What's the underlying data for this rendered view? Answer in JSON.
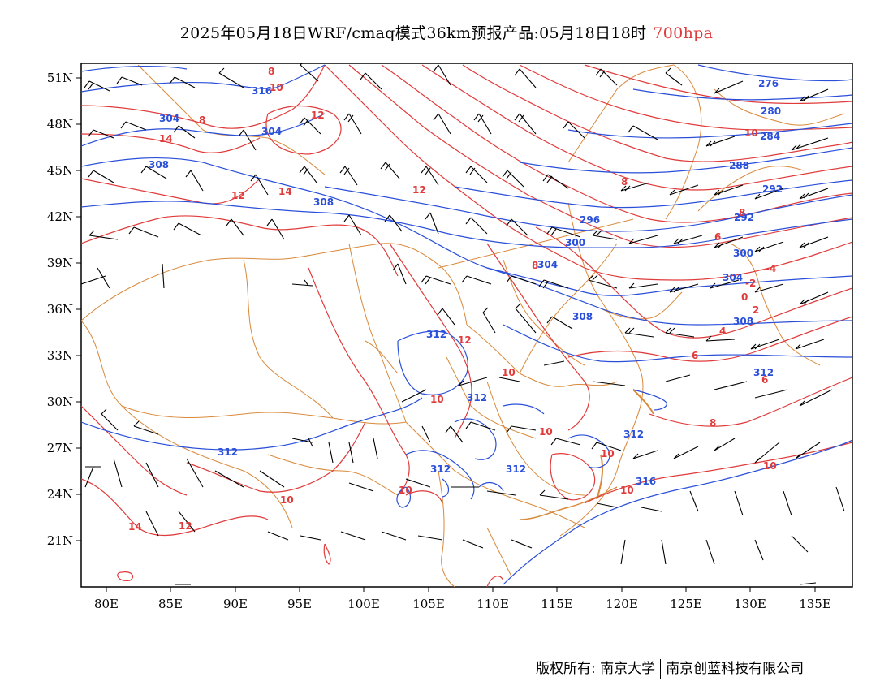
{
  "title": {
    "main": "2025年05月18日WRF/cmaq模式36km预报产品:05月18日18时",
    "level": "700hpa",
    "level_color": "#e03b3b"
  },
  "axes": {
    "lon_labels": [
      "80E",
      "85E",
      "90E",
      "95E",
      "100E",
      "105E",
      "110E",
      "115E",
      "120E",
      "125E",
      "130E",
      "135E"
    ],
    "lat_labels": [
      "51N",
      "48N",
      "45N",
      "42N",
      "39N",
      "36N",
      "33N",
      "30N",
      "27N",
      "24N",
      "21N"
    ]
  },
  "colors": {
    "height_contour": "#2a4fd9",
    "temperature_contour": "#e03b3b",
    "boundary": "#d9893a",
    "wind_barb": "#000000"
  },
  "height_labels": [
    "276",
    "280",
    "284",
    "288",
    "292",
    "296",
    "300",
    "304",
    "308",
    "312",
    "316"
  ],
  "temperature_labels": [
    "-4",
    "-2",
    "0",
    "2",
    "4",
    "6",
    "8",
    "10",
    "12",
    "14"
  ],
  "footer": {
    "copyright": "版权所有: 南京大学",
    "company": "南京创蓝科技有限公司"
  }
}
